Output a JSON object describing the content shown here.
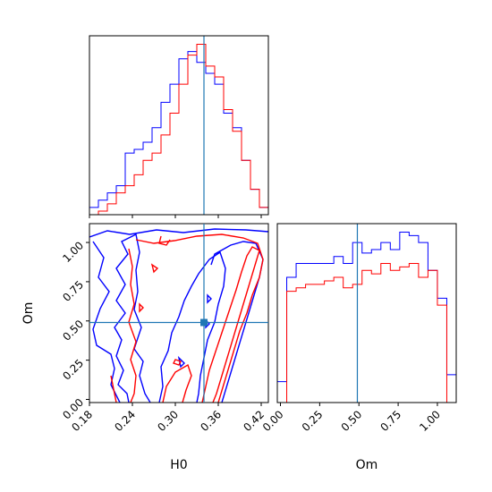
{
  "chart_data": {
    "type": "corner",
    "parameters": [
      "H0",
      "Om"
    ],
    "truth": {
      "H0": 0.34,
      "Om": 0.49
    },
    "colors": {
      "series_a": "#0000ff",
      "series_b": "#ff0000",
      "truth": "#1f77b4"
    },
    "grid": false,
    "hist_H0": {
      "xlim": [
        0.18,
        0.43
      ],
      "bin_edges": [
        0.18,
        0.1925,
        0.205,
        0.2175,
        0.23,
        0.2425,
        0.255,
        0.2675,
        0.28,
        0.2925,
        0.305,
        0.3175,
        0.33,
        0.3425,
        0.355,
        0.3675,
        0.38,
        0.3925,
        0.405,
        0.4175,
        0.43
      ],
      "series": [
        {
          "color": "blue",
          "counts": [
            2,
            4,
            6,
            8,
            17,
            18,
            20,
            24,
            31,
            36,
            43,
            45,
            42,
            39,
            36,
            28,
            24,
            15,
            7,
            2
          ]
        },
        {
          "color": "red",
          "counts": [
            0,
            1,
            3,
            6,
            8,
            11,
            15,
            17,
            22,
            28,
            36,
            44,
            47,
            41,
            38,
            29,
            23,
            15,
            7,
            2
          ]
        }
      ]
    },
    "hist_Om": {
      "xlim": [
        -0.02,
        1.12
      ],
      "bin_edges": [
        -0.02,
        0.04,
        0.1,
        0.16,
        0.22,
        0.28,
        0.34,
        0.4,
        0.46,
        0.52,
        0.58,
        0.64,
        0.7,
        0.76,
        0.82,
        0.88,
        0.94,
        1.0,
        1.06,
        1.12
      ],
      "xticks": [
        "0.00",
        "0.25",
        "0.50",
        "0.75",
        "1.00"
      ],
      "xlabel": "Om",
      "series": [
        {
          "color": "blue",
          "counts": [
            6,
            36,
            40,
            40,
            40,
            40,
            42,
            40,
            46,
            43,
            44,
            46,
            44,
            49,
            48,
            46,
            38,
            30,
            8
          ]
        },
        {
          "color": "red",
          "counts": [
            0,
            32,
            33,
            34,
            34,
            35,
            36,
            33,
            34,
            38,
            37,
            40,
            38,
            39,
            40,
            36,
            38,
            28,
            0
          ]
        }
      ]
    },
    "joint": {
      "xlim": [
        0.18,
        0.43
      ],
      "ylim": [
        -0.02,
        1.12
      ],
      "xticks": [
        "0.18",
        "0.24",
        "0.30",
        "0.36",
        "0.42"
      ],
      "yticks": [
        "0.00",
        "0.25",
        "0.50",
        "0.75",
        "1.00"
      ],
      "xlabel": "H0",
      "ylabel": "Om",
      "truth_marker": [
        0.34,
        0.49
      ]
    }
  }
}
